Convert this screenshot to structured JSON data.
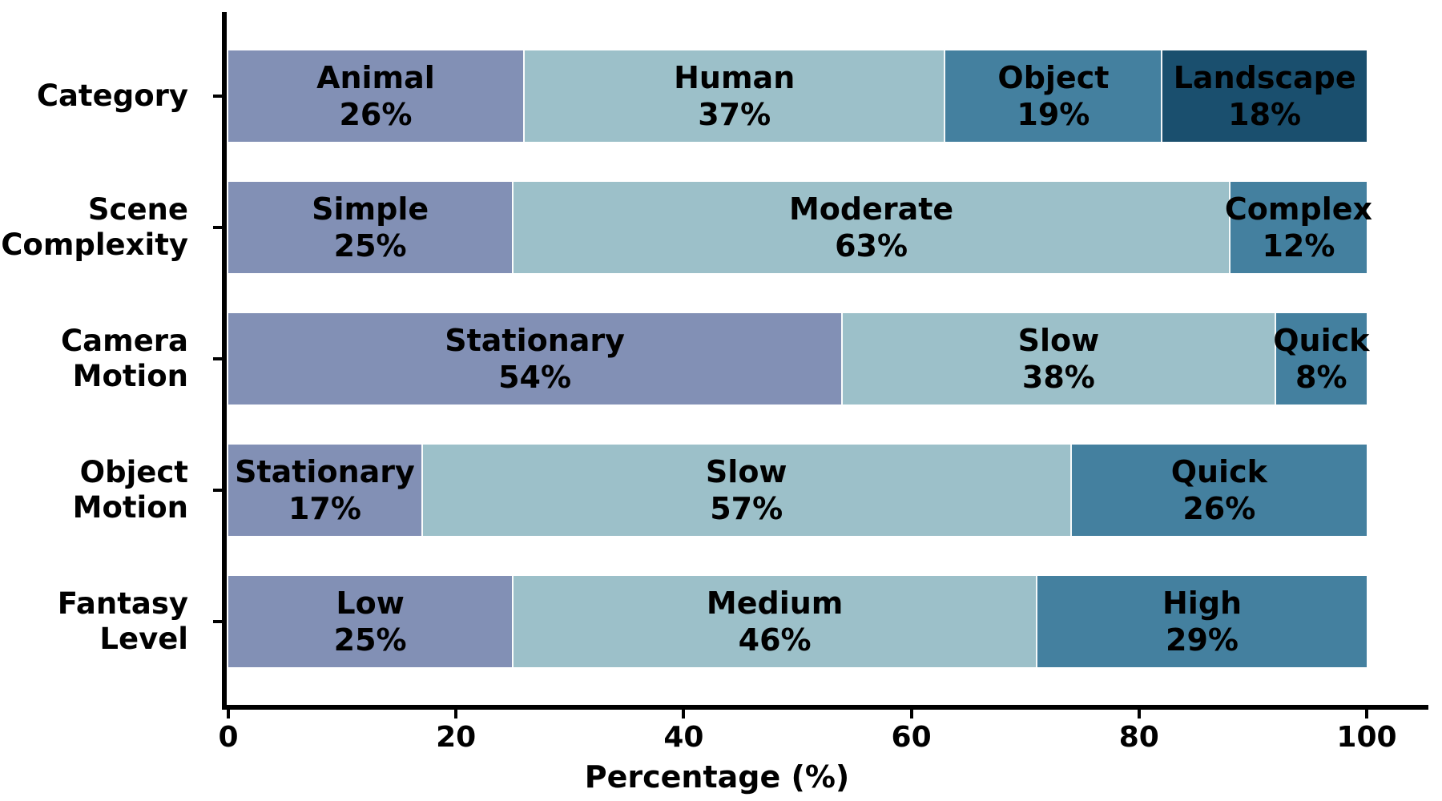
{
  "figure": {
    "background": "#ffffff",
    "axis_color": "#000000",
    "text_color": "#000000"
  },
  "chart_data": {
    "type": "bar",
    "orientation": "horizontal",
    "stacked": true,
    "unit": "%",
    "title": "",
    "xlabel": "Percentage (%)",
    "ylabel": "",
    "xlim": [
      0,
      105
    ],
    "xticks": [
      0,
      20,
      40,
      60,
      80,
      100
    ],
    "grid": false,
    "legend_position": "none",
    "value_labels_inside_bars": true,
    "segment_colors": [
      "#8290b5",
      "#9cc0c9",
      "#44809f",
      "#1a4f6e"
    ],
    "categories": [
      "Category",
      "Scene Complexity",
      "Camera Motion",
      "Object Motion",
      "Fantasy Level"
    ],
    "rows": [
      {
        "label_lines": [
          "Category"
        ],
        "segments": [
          {
            "name": "Animal",
            "value": 26
          },
          {
            "name": "Human",
            "value": 37
          },
          {
            "name": "Object",
            "value": 19
          },
          {
            "name": "Landscape",
            "value": 18
          }
        ]
      },
      {
        "label_lines": [
          "Scene",
          "Complexity"
        ],
        "segments": [
          {
            "name": "Simple",
            "value": 25
          },
          {
            "name": "Moderate",
            "value": 63
          },
          {
            "name": "Complex",
            "value": 12
          }
        ]
      },
      {
        "label_lines": [
          "Camera",
          "Motion"
        ],
        "segments": [
          {
            "name": "Stationary",
            "value": 54
          },
          {
            "name": "Slow",
            "value": 38
          },
          {
            "name": "Quick",
            "value": 8
          }
        ]
      },
      {
        "label_lines": [
          "Object",
          "Motion"
        ],
        "segments": [
          {
            "name": "Stationary",
            "value": 17
          },
          {
            "name": "Slow",
            "value": 57
          },
          {
            "name": "Quick",
            "value": 26
          }
        ]
      },
      {
        "label_lines": [
          "Fantasy",
          "Level"
        ],
        "segments": [
          {
            "name": "Low",
            "value": 25
          },
          {
            "name": "Medium",
            "value": 46
          },
          {
            "name": "High",
            "value": 29
          }
        ]
      }
    ]
  }
}
